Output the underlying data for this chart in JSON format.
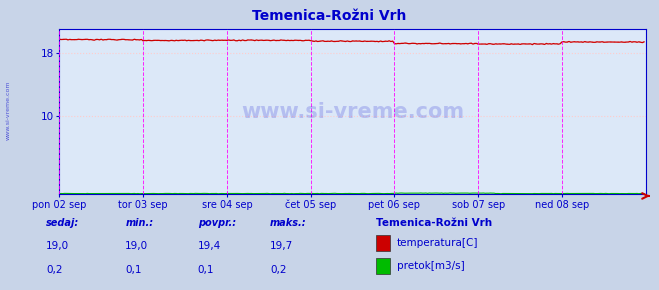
{
  "title": "Temenica-Rožni Vrh",
  "title_color": "#0000cc",
  "background_color": "#c8d4e8",
  "plot_background_color": "#dce8f8",
  "x_tick_labels": [
    "pon 02 sep",
    "tor 03 sep",
    "sre 04 sep",
    "čet 05 sep",
    "pet 06 sep",
    "sob 07 sep",
    "ned 08 sep"
  ],
  "x_tick_positions": [
    0,
    48,
    96,
    144,
    192,
    240,
    288
  ],
  "x_max": 336,
  "ylim": [
    0,
    21
  ],
  "y_ticks": [
    10,
    18
  ],
  "temp_min": 19.0,
  "temp_max": 19.7,
  "flow_max": 0.2,
  "temp_color": "#cc0000",
  "temp_dashed_color": "#ffaaaa",
  "flow_color": "#00bb00",
  "vline_color": "#ff00ff",
  "grid_color": "#ffcccc",
  "axis_color": "#0000cc",
  "watermark": "www.si-vreme.com",
  "watermark_color": "#0000cc",
  "legend_title": "Temenica-Rožni Vrh",
  "legend_title_color": "#0000cc",
  "legend_color": "#0000cc",
  "footer_label_color": "#0000cc",
  "footer_value_color": "#0000cc",
  "footer_labels": [
    "sedaj:",
    "min.:",
    "povpr.:",
    "maks.:"
  ],
  "footer_temp_values": [
    "19,0",
    "19,0",
    "19,4",
    "19,7"
  ],
  "footer_flow_values": [
    "0,2",
    "0,1",
    "0,1",
    "0,2"
  ],
  "legend_items": [
    {
      "label": "temperatura[C]",
      "color": "#cc0000"
    },
    {
      "label": "pretok[m3/s]",
      "color": "#00bb00"
    }
  ]
}
